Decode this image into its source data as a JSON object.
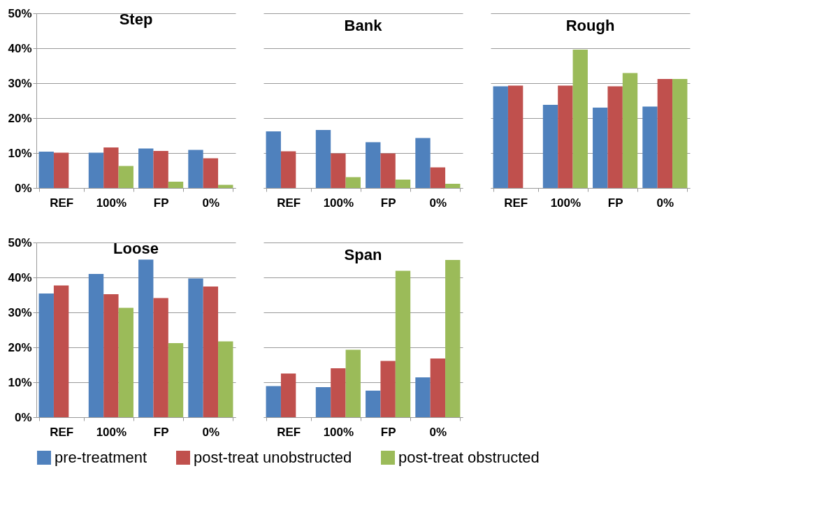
{
  "chart_data": [
    {
      "type": "bar",
      "title": "Step",
      "categories": [
        "REF",
        "100%",
        "FP",
        "0%"
      ],
      "series": [
        {
          "name": "pre-treatment",
          "color": "#4f81bd",
          "values": [
            10.4,
            10.1,
            11.3,
            10.9
          ]
        },
        {
          "name": "post-treat unobstructed",
          "color": "#c0504d",
          "values": [
            10.1,
            11.6,
            10.6,
            8.5
          ]
        },
        {
          "name": "post-treat obstructed",
          "color": "#9bbb59",
          "values": [
            null,
            6.3,
            1.8,
            0.9
          ]
        }
      ],
      "ylim": [
        0,
        50
      ],
      "yticks": [
        {
          "value": 0,
          "label": "0%"
        },
        {
          "value": 10,
          "label": "10%"
        },
        {
          "value": 20,
          "label": "20%"
        },
        {
          "value": 30,
          "label": "30%"
        },
        {
          "value": 40,
          "label": "40%"
        },
        {
          "value": 50,
          "label": "50%"
        }
      ],
      "grid": "y",
      "legend": "bottom"
    },
    {
      "type": "bar",
      "title": "Bank",
      "categories": [
        "REF",
        "100%",
        "FP",
        "0%"
      ],
      "series": [
        {
          "name": "pre-treatment",
          "color": "#4f81bd",
          "values": [
            16.2,
            16.6,
            13.1,
            14.3
          ]
        },
        {
          "name": "post-treat unobstructed",
          "color": "#c0504d",
          "values": [
            10.5,
            9.9,
            9.9,
            5.9
          ]
        },
        {
          "name": "post-treat obstructed",
          "color": "#9bbb59",
          "values": [
            null,
            3.1,
            2.4,
            1.2
          ]
        }
      ],
      "ylim": [
        0,
        50
      ],
      "yticks": [
        {
          "value": 0,
          "label": "0%"
        },
        {
          "value": 10,
          "label": "10%"
        },
        {
          "value": 20,
          "label": "20%"
        },
        {
          "value": 30,
          "label": "30%"
        },
        {
          "value": 40,
          "label": "40%"
        },
        {
          "value": 50,
          "label": "50%"
        }
      ],
      "grid": "y",
      "legend": "bottom",
      "tick_labels": "x"
    },
    {
      "type": "bar",
      "title": "Rough",
      "categories": [
        "REF",
        "100%",
        "FP",
        "0%"
      ],
      "series": [
        {
          "name": "pre-treatment",
          "color": "#4f81bd",
          "values": [
            29.1,
            23.8,
            23.0,
            23.3
          ]
        },
        {
          "name": "post-treat unobstructed",
          "color": "#c0504d",
          "values": [
            29.3,
            29.3,
            29.1,
            31.2
          ]
        },
        {
          "name": "post-treat obstructed",
          "color": "#9bbb59",
          "values": [
            null,
            39.6,
            32.9,
            31.2
          ]
        }
      ],
      "ylim": [
        0,
        50
      ],
      "yticks": [
        {
          "value": 0,
          "label": "0%"
        },
        {
          "value": 10,
          "label": "10%"
        },
        {
          "value": 20,
          "label": "20%"
        },
        {
          "value": 30,
          "label": "30%"
        },
        {
          "value": 40,
          "label": "40%"
        },
        {
          "value": 50,
          "label": "50%"
        }
      ],
      "grid": "y",
      "legend": "bottom",
      "tick_labels": "x"
    },
    {
      "type": "bar",
      "title": "Loose",
      "categories": [
        "REF",
        "100%",
        "FP",
        "0%"
      ],
      "series": [
        {
          "name": "pre-treatment",
          "color": "#4f81bd",
          "values": [
            35.4,
            41.0,
            45.1,
            39.7
          ]
        },
        {
          "name": "post-treat unobstructed",
          "color": "#c0504d",
          "values": [
            37.7,
            35.2,
            34.1,
            37.4
          ]
        },
        {
          "name": "post-treat obstructed",
          "color": "#9bbb59",
          "values": [
            null,
            31.3,
            21.2,
            21.7
          ]
        }
      ],
      "ylim": [
        0,
        50
      ],
      "yticks": [
        {
          "value": 0,
          "label": "0%"
        },
        {
          "value": 10,
          "label": "10%"
        },
        {
          "value": 20,
          "label": "20%"
        },
        {
          "value": 30,
          "label": "30%"
        },
        {
          "value": 40,
          "label": "40%"
        },
        {
          "value": 50,
          "label": "50%"
        }
      ],
      "grid": "y",
      "legend": "bottom"
    },
    {
      "type": "bar",
      "title": "Span",
      "categories": [
        "REF",
        "100%",
        "FP",
        "0%"
      ],
      "series": [
        {
          "name": "pre-treatment",
          "color": "#4f81bd",
          "values": [
            8.9,
            8.6,
            7.6,
            11.4
          ]
        },
        {
          "name": "post-treat unobstructed",
          "color": "#c0504d",
          "values": [
            12.5,
            14.0,
            16.1,
            16.8
          ]
        },
        {
          "name": "post-treat obstructed",
          "color": "#9bbb59",
          "values": [
            null,
            19.3,
            41.9,
            45.0
          ]
        }
      ],
      "ylim": [
        0,
        50
      ],
      "yticks": [
        {
          "value": 0,
          "label": "0%"
        },
        {
          "value": 10,
          "label": "10%"
        },
        {
          "value": 20,
          "label": "20%"
        },
        {
          "value": 30,
          "label": "30%"
        },
        {
          "value": 40,
          "label": "40%"
        },
        {
          "value": 50,
          "label": "50%"
        }
      ],
      "grid": "y",
      "legend": "bottom",
      "tick_labels": "x"
    }
  ]
}
